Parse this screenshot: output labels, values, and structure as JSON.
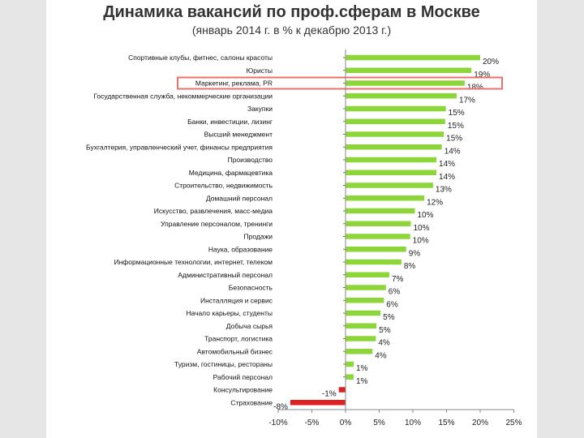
{
  "header": {
    "title": "Динамика вакансий по проф.сферам в Москве",
    "subtitle": "(январь 2014 г. в % к декабрю 2013 г.)"
  },
  "chart_data": {
    "type": "bar",
    "orientation": "horizontal",
    "title": "Динамика вакансий по проф.сферам в Москве",
    "subtitle": "(январь 2014 г. в % к декабрю 2013 г.)",
    "xlabel": "",
    "ylabel": "",
    "xlim": [
      -10,
      25
    ],
    "tick_values": [
      -10,
      -5,
      0,
      5,
      10,
      15,
      20,
      25
    ],
    "tick_labels": [
      "-10%",
      "-5%",
      "0%",
      "5%",
      "10%",
      "15%",
      "20%",
      "25%"
    ],
    "value_suffix": "%",
    "grid": false,
    "legend": "none",
    "colors": {
      "positive": "#8cd63a",
      "negative": "#e02020",
      "highlight_frame": "#e8736b"
    },
    "highlighted_category": "Маркетинг, реклама, PR",
    "categories": [
      "Спортивные клубы, фитнес, салоны красоты",
      "Юристы",
      "Маркетинг, реклама, PR",
      "Государственная служба, некоммерческие организации",
      "Закупки",
      "Банки, инвестиции, лизинг",
      "Высший менеджмент",
      "Бухгалтерия, управленческий учет, финансы предприятия",
      "Производство",
      "Медицина, фармацевтика",
      "Строительство, недвижимость",
      "Домашний персонал",
      "Искусство, развлечения, масс-медиа",
      "Управление персоналом, тренинги",
      "Продажи",
      "Наука, образование",
      "Информационные технологии, интернет, телеком",
      "Административный персонал",
      "Безопасность",
      "Инсталляция и сервис",
      "Начало карьеры, студенты",
      "Добыча сырья",
      "Транспорт, логистика",
      "Автомобильный бизнес",
      "Туризм, гостиницы, рестораны",
      "Рабочий персонал",
      "Консультирование",
      "Страхование"
    ],
    "values": [
      20.0,
      18.7,
      17.7,
      16.5,
      14.9,
      14.8,
      14.6,
      14.3,
      13.5,
      13.5,
      13.0,
      11.7,
      10.3,
      9.7,
      9.6,
      9.0,
      8.3,
      6.5,
      6.0,
      5.7,
      5.2,
      4.6,
      4.5,
      4.0,
      1.2,
      1.2,
      -1.0,
      -8.2
    ],
    "value_labels": [
      "20%",
      "19%",
      "18%",
      "17%",
      "15%",
      "15%",
      "15%",
      "14%",
      "14%",
      "14%",
      "13%",
      "12%",
      "10%",
      "10%",
      "10%",
      "9%",
      "8%",
      "7%",
      "6%",
      "6%",
      "5%",
      "5%",
      "4%",
      "4%",
      "1%",
      "1%",
      "-1%",
      "-8%"
    ]
  }
}
